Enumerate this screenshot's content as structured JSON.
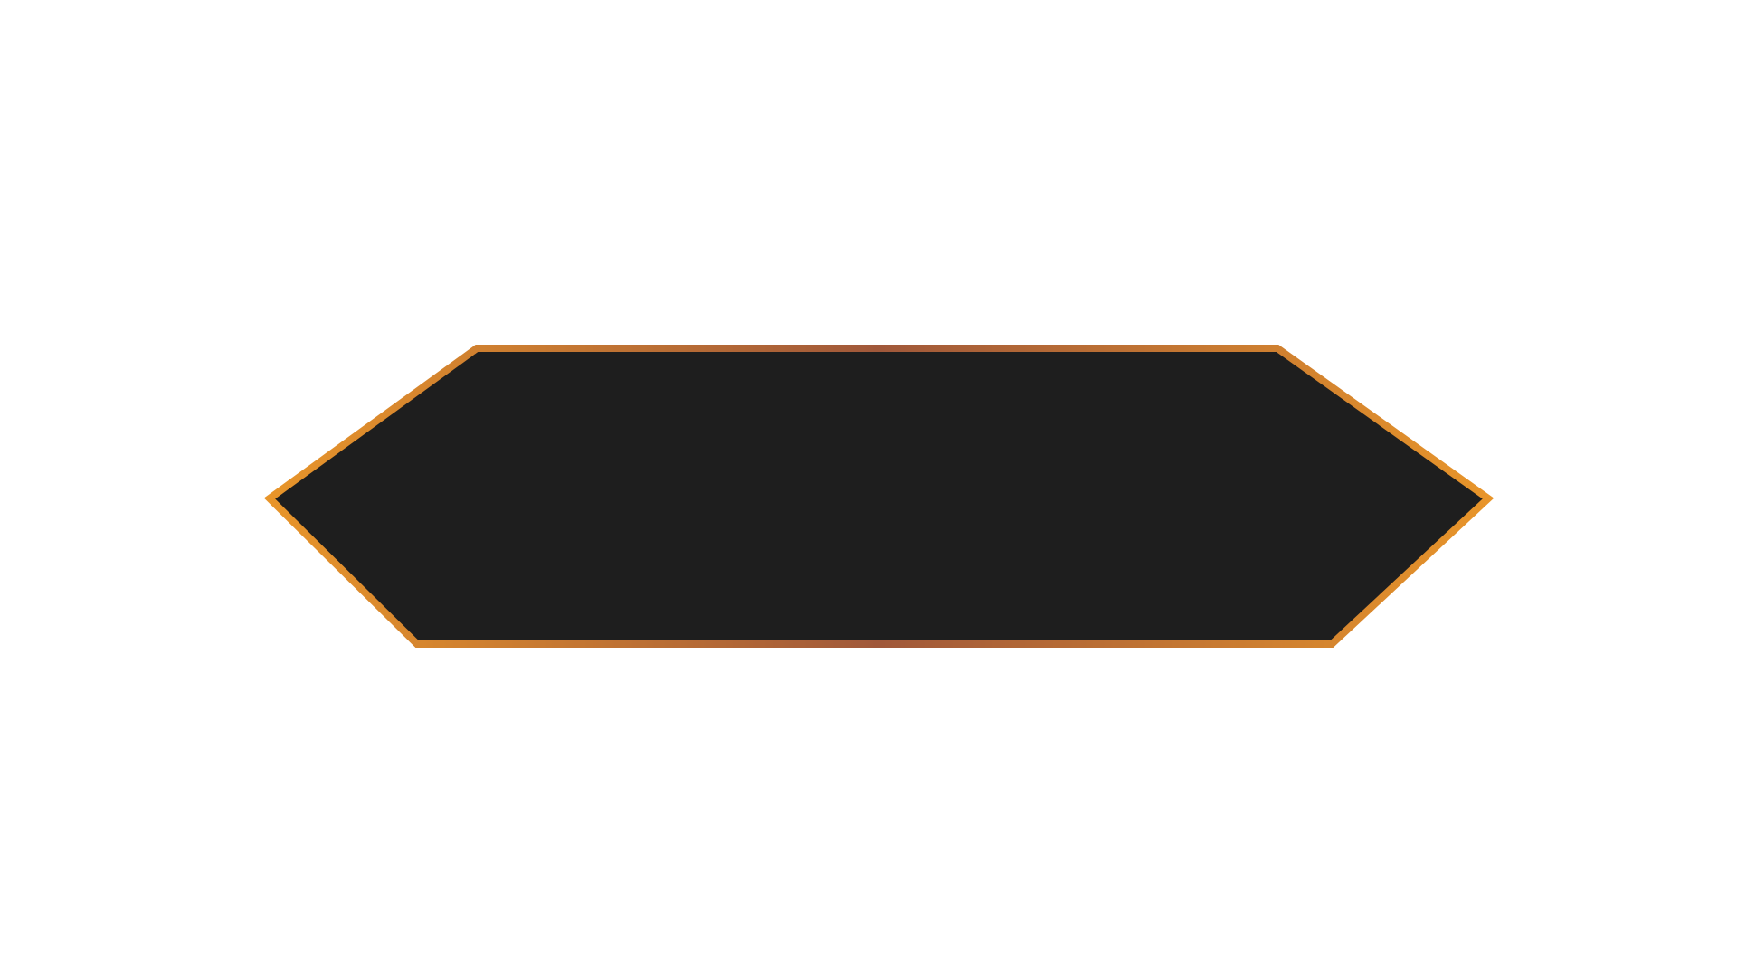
{
  "colors": {
    "page_background": "#ffffff",
    "panel_fill": "#1e1e1e",
    "border_edge": "#e8952a",
    "border_center": "#a0583a"
  },
  "shapes": {
    "banner": "elongated-hexagon"
  }
}
